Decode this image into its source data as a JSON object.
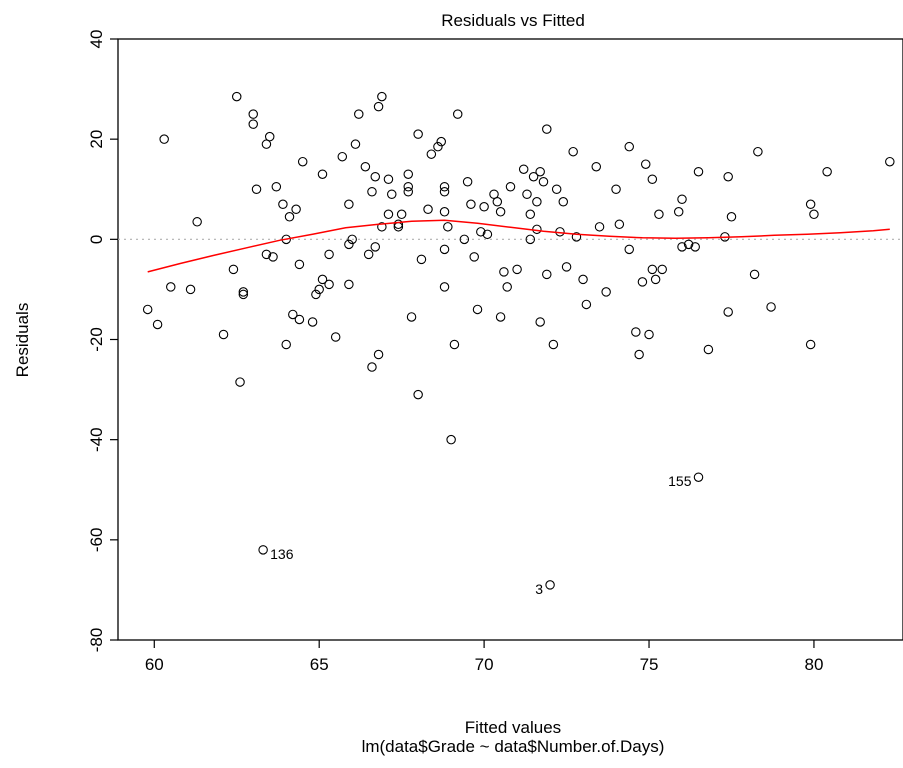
{
  "chart_data": {
    "type": "scatter",
    "title": "Residuals vs Fitted",
    "xlabel": "Fitted values",
    "subtitle": "lm(data$Grade ~ data$Number.of.Days)",
    "ylabel": "Residuals",
    "xlim": [
      58.9,
      82.7
    ],
    "ylim": [
      -80,
      40
    ],
    "xticks": [
      "60",
      "65",
      "70",
      "75",
      "80"
    ],
    "yticks": [
      "-80",
      "-60",
      "-40",
      "-20",
      "0",
      "20",
      "40"
    ],
    "grid": false,
    "zero_line": {
      "y": 0,
      "style": "dotted",
      "color": "#b0b0b0"
    },
    "smoother_color": "#ff0000",
    "point_marker": "open-circle",
    "points": [
      [
        59.8,
        -14
      ],
      [
        60.1,
        -17
      ],
      [
        60.3,
        20
      ],
      [
        60.5,
        -9.5
      ],
      [
        61.1,
        -10
      ],
      [
        61.3,
        3.5
      ],
      [
        62.1,
        -19
      ],
      [
        62.4,
        -6
      ],
      [
        62.5,
        28.5
      ],
      [
        62.6,
        -28.5
      ],
      [
        62.7,
        -11
      ],
      [
        62.7,
        -10.5
      ],
      [
        63.0,
        25
      ],
      [
        63.0,
        23
      ],
      [
        63.1,
        10
      ],
      [
        63.3,
        -62
      ],
      [
        63.4,
        -3
      ],
      [
        63.4,
        19
      ],
      [
        63.5,
        20.5
      ],
      [
        63.6,
        -3.5
      ],
      [
        63.7,
        10.5
      ],
      [
        63.9,
        7
      ],
      [
        64.0,
        0
      ],
      [
        64.0,
        -21
      ],
      [
        64.1,
        4.5
      ],
      [
        64.2,
        -15
      ],
      [
        64.3,
        6
      ],
      [
        64.4,
        -5
      ],
      [
        64.4,
        -16
      ],
      [
        64.5,
        15.5
      ],
      [
        64.8,
        -16.5
      ],
      [
        64.9,
        -11
      ],
      [
        65.0,
        -10
      ],
      [
        65.1,
        -8
      ],
      [
        65.1,
        13
      ],
      [
        65.3,
        -9
      ],
      [
        65.3,
        -3
      ],
      [
        65.5,
        -19.5
      ],
      [
        65.7,
        16.5
      ],
      [
        65.9,
        7
      ],
      [
        65.9,
        -9
      ],
      [
        65.9,
        -1
      ],
      [
        66.0,
        0
      ],
      [
        66.1,
        19
      ],
      [
        66.2,
        25
      ],
      [
        66.4,
        14.5
      ],
      [
        66.5,
        -3
      ],
      [
        66.6,
        -25.5
      ],
      [
        66.6,
        9.5
      ],
      [
        66.7,
        -1.5
      ],
      [
        66.7,
        12.5
      ],
      [
        66.8,
        26.5
      ],
      [
        66.8,
        -23
      ],
      [
        66.9,
        28.5
      ],
      [
        66.9,
        2.5
      ],
      [
        67.1,
        12
      ],
      [
        67.1,
        5
      ],
      [
        67.2,
        9
      ],
      [
        67.4,
        2.5
      ],
      [
        67.4,
        3
      ],
      [
        67.5,
        5
      ],
      [
        67.7,
        10.5
      ],
      [
        67.7,
        9.5
      ],
      [
        67.7,
        13
      ],
      [
        67.8,
        -15.5
      ],
      [
        68.0,
        21
      ],
      [
        68.0,
        -31
      ],
      [
        68.1,
        -4
      ],
      [
        68.3,
        6
      ],
      [
        68.4,
        17
      ],
      [
        68.6,
        18.5
      ],
      [
        68.7,
        19.5
      ],
      [
        68.8,
        -2
      ],
      [
        68.8,
        10.5
      ],
      [
        68.8,
        9.5
      ],
      [
        68.8,
        -9.5
      ],
      [
        68.8,
        5.5
      ],
      [
        68.9,
        2.5
      ],
      [
        69.0,
        -40
      ],
      [
        69.1,
        -21
      ],
      [
        69.2,
        25
      ],
      [
        69.4,
        0
      ],
      [
        69.5,
        11.5
      ],
      [
        69.6,
        7
      ],
      [
        69.7,
        -3.5
      ],
      [
        69.8,
        -14
      ],
      [
        69.9,
        1.5
      ],
      [
        70.0,
        6.5
      ],
      [
        70.1,
        1
      ],
      [
        70.3,
        9
      ],
      [
        70.4,
        7.5
      ],
      [
        70.5,
        5.5
      ],
      [
        70.5,
        -15.5
      ],
      [
        70.6,
        -6.5
      ],
      [
        70.7,
        -9.5
      ],
      [
        70.8,
        10.5
      ],
      [
        71.0,
        -6
      ],
      [
        71.2,
        14
      ],
      [
        71.3,
        9
      ],
      [
        71.4,
        0
      ],
      [
        71.4,
        5
      ],
      [
        71.5,
        12.5
      ],
      [
        71.6,
        7.5
      ],
      [
        71.6,
        2
      ],
      [
        71.7,
        13.5
      ],
      [
        71.7,
        -16.5
      ],
      [
        71.8,
        11.5
      ],
      [
        71.9,
        22
      ],
      [
        71.9,
        -7
      ],
      [
        72.0,
        -69
      ],
      [
        72.1,
        -21
      ],
      [
        72.2,
        10
      ],
      [
        72.3,
        1.5
      ],
      [
        72.4,
        7.5
      ],
      [
        72.5,
        -5.5
      ],
      [
        72.7,
        17.5
      ],
      [
        72.8,
        0.5
      ],
      [
        73.0,
        -8
      ],
      [
        73.1,
        -13
      ],
      [
        73.4,
        14.5
      ],
      [
        73.5,
        2.5
      ],
      [
        73.7,
        -10.5
      ],
      [
        74.0,
        10
      ],
      [
        74.1,
        3
      ],
      [
        74.4,
        18.5
      ],
      [
        74.4,
        -2
      ],
      [
        74.6,
        -18.5
      ],
      [
        74.7,
        -23
      ],
      [
        74.8,
        -8.5
      ],
      [
        74.9,
        15
      ],
      [
        75.0,
        -19
      ],
      [
        75.1,
        -6
      ],
      [
        75.1,
        12
      ],
      [
        75.2,
        -8
      ],
      [
        75.3,
        5
      ],
      [
        75.4,
        -6
      ],
      [
        75.9,
        5.5
      ],
      [
        76.0,
        -1.5
      ],
      [
        76.0,
        8
      ],
      [
        76.2,
        -1
      ],
      [
        76.4,
        -1.5
      ],
      [
        76.5,
        13.5
      ],
      [
        76.5,
        -47.5
      ],
      [
        76.8,
        -22
      ],
      [
        77.3,
        0.5
      ],
      [
        77.4,
        12.5
      ],
      [
        77.4,
        -14.5
      ],
      [
        77.5,
        4.5
      ],
      [
        78.2,
        -7
      ],
      [
        78.3,
        17.5
      ],
      [
        78.7,
        -13.5
      ],
      [
        79.9,
        7
      ],
      [
        79.9,
        -21
      ],
      [
        80.0,
        5
      ],
      [
        80.4,
        13.5
      ],
      [
        82.3,
        15.5
      ]
    ],
    "smoother": [
      [
        59.8,
        -6.5
      ],
      [
        60.8,
        -4.8
      ],
      [
        61.8,
        -3.2
      ],
      [
        62.8,
        -1.7
      ],
      [
        63.8,
        -0.2
      ],
      [
        64.8,
        1.0
      ],
      [
        65.8,
        2.3
      ],
      [
        66.8,
        3.0
      ],
      [
        67.8,
        3.6
      ],
      [
        68.8,
        3.8
      ],
      [
        69.8,
        3.2
      ],
      [
        70.8,
        2.4
      ],
      [
        71.8,
        1.6
      ],
      [
        72.8,
        1.0
      ],
      [
        73.8,
        0.6
      ],
      [
        74.8,
        0.3
      ],
      [
        75.8,
        0.2
      ],
      [
        76.8,
        0.3
      ],
      [
        77.8,
        0.5
      ],
      [
        78.8,
        0.8
      ],
      [
        79.8,
        1.0
      ],
      [
        80.8,
        1.3
      ],
      [
        81.8,
        1.7
      ],
      [
        82.3,
        2.0
      ]
    ],
    "point_labels": [
      {
        "text": "136",
        "x": 63.3,
        "y": -62,
        "side": "right"
      },
      {
        "text": "3",
        "x": 72.0,
        "y": -69,
        "side": "left"
      },
      {
        "text": "155",
        "x": 76.5,
        "y": -47.5,
        "side": "left"
      }
    ]
  }
}
